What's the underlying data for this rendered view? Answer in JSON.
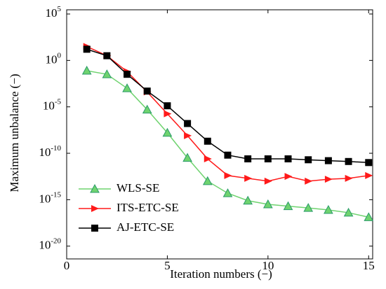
{
  "chart_data": {
    "type": "line",
    "x_label": "Iteration numbers (−)",
    "y_label": "Maximum unbalance (−)",
    "log_y": true,
    "legend": "lower left",
    "xlim": [
      0,
      15.2
    ],
    "xticks": [
      0,
      5,
      10,
      15
    ],
    "ylim": [
      1e-21,
      100000.0
    ],
    "yticks": [
      {
        "value": 1e-20,
        "label": "10^-20"
      },
      {
        "value": 1e-15,
        "label": "10^-15"
      },
      {
        "value": 1e-10,
        "label": "10^-10"
      },
      {
        "value": 1e-05,
        "label": "10^-5"
      },
      {
        "value": 1,
        "label": "10^0"
      },
      {
        "value": 100000.0,
        "label": "10^5"
      }
    ],
    "x": [
      1,
      2,
      3,
      4,
      5,
      6,
      7,
      8,
      9,
      10,
      11,
      12,
      13,
      14,
      15
    ],
    "series": [
      {
        "name": "WLS-SE",
        "color": "#6fd36f",
        "marker": "triangle-up",
        "values": [
          0.079,
          0.032,
          0.001,
          5e-06,
          1.6e-08,
          3.2e-11,
          1e-13,
          5e-15,
          7.9e-16,
          3.2e-16,
          2e-16,
          1.3e-16,
          7.9e-17,
          4e-17,
          1.3e-17
        ]
      },
      {
        "name": "ITS-ETC-SE",
        "color": "#ff1a1a",
        "marker": "triangle-right",
        "values": [
          32,
          3.2,
          0.063,
          0.0004,
          1.8e-06,
          7.9e-09,
          2.5e-11,
          4e-13,
          2e-13,
          1e-13,
          3.2e-13,
          1e-13,
          1.6e-13,
          2e-13,
          4e-13
        ]
      },
      {
        "name": "AJ-ETC-SE",
        "color": "#000000",
        "marker": "square",
        "values": [
          16,
          3.2,
          0.032,
          0.0005,
          1.3e-05,
          1.6e-07,
          2e-09,
          6.3e-11,
          2.5e-11,
          2.5e-11,
          2.5e-11,
          2e-11,
          1.6e-11,
          1.3e-11,
          1e-11
        ]
      }
    ]
  }
}
